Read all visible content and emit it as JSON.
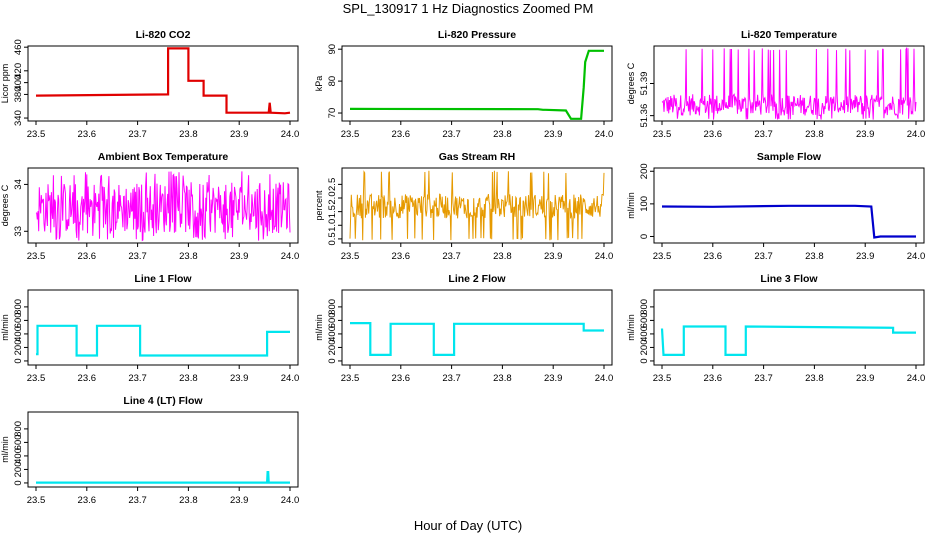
{
  "page": {
    "title": "SPL_130917  1 Hz Diagnostics Zoomed PM",
    "xlabel": "Hour of Day (UTC)"
  },
  "chart_data": [
    {
      "type": "line",
      "title": "Li-820 CO2",
      "ylabel": "Licor ppm",
      "color": "#e00000",
      "xlim": [
        23.5,
        24.0
      ],
      "xticks": [
        23.5,
        23.6,
        23.7,
        23.8,
        23.9,
        24.0
      ],
      "ylim": [
        335,
        462
      ],
      "yticks": [
        340,
        380,
        400,
        420,
        460
      ],
      "series": [
        {
          "style": "step",
          "x": [
            23.5,
            23.76,
            23.76,
            23.8,
            23.8,
            23.83,
            23.83,
            23.875,
            23.875,
            23.958,
            23.96,
            23.962,
            23.99,
            24.0
          ],
          "values": [
            378,
            380,
            458,
            458,
            403,
            403,
            378,
            378,
            349,
            349,
            366,
            349,
            348,
            349
          ]
        }
      ]
    },
    {
      "type": "line",
      "title": "Li-820 Pressure",
      "ylabel": "kPa",
      "color": "#00c000",
      "xlim": [
        23.5,
        24.0
      ],
      "xticks": [
        23.5,
        23.6,
        23.7,
        23.8,
        23.9,
        24.0
      ],
      "ylim": [
        67.5,
        91
      ],
      "yticks": [
        70,
        80,
        90
      ],
      "series": [
        {
          "style": "step",
          "x": [
            23.5,
            23.87,
            23.88,
            23.885,
            23.925,
            23.935,
            23.955,
            23.96,
            23.963,
            23.97,
            24.0
          ],
          "values": [
            71.3,
            71.2,
            71,
            71,
            70.8,
            68.2,
            68.2,
            78,
            86,
            89.5,
            89.5
          ]
        }
      ]
    },
    {
      "type": "line",
      "title": "Li-820 Temperature",
      "ylabel": "degrees C",
      "color": "#ff00ff",
      "xlim": [
        23.5,
        24.0
      ],
      "xticks": [
        23.5,
        23.6,
        23.7,
        23.8,
        23.9,
        24.0
      ],
      "ylim": [
        51.355,
        51.425
      ],
      "yticks": [
        51.36,
        51.39
      ],
      "series": [
        {
          "style": "noise",
          "mean": 51.37,
          "spread": 0.01,
          "spike_high": 51.423,
          "spike_low": 51.356
        }
      ]
    },
    {
      "type": "line",
      "title": "Ambient Box Temperature",
      "ylabel": "degrees C",
      "color": "#ff00ff",
      "xlim": [
        23.5,
        24.0
      ],
      "xticks": [
        23.5,
        23.6,
        23.7,
        23.8,
        23.9,
        24.0
      ],
      "ylim": [
        32.25,
        33.85
      ],
      "yticks": [
        32.5,
        33.5
      ],
      "series": [
        {
          "style": "noise",
          "mean": 33.0,
          "spread": 0.55,
          "spike_high": 33.78,
          "spike_low": 32.3
        }
      ]
    },
    {
      "type": "line",
      "title": "Gas Stream RH",
      "ylabel": "percent",
      "color": "#e69a00",
      "xlim": [
        23.5,
        24.0
      ],
      "xticks": [
        23.5,
        23.6,
        23.7,
        23.8,
        23.9,
        24.0
      ],
      "ylim": [
        0.35,
        3.1
      ],
      "yticks": [
        0.5,
        1.0,
        1.5,
        2.0,
        2.5
      ],
      "series": [
        {
          "style": "noise",
          "mean": 1.7,
          "spread": 0.45,
          "spike_high": 3.0,
          "spike_low": 0.45
        }
      ]
    },
    {
      "type": "line",
      "title": "Sample Flow",
      "ylabel": "ml/min",
      "color": "#0000cc",
      "xlim": [
        23.5,
        24.0
      ],
      "xticks": [
        23.5,
        23.6,
        23.7,
        23.8,
        23.9,
        24.0
      ],
      "ylim": [
        -20,
        210
      ],
      "yticks": [
        0,
        100,
        200
      ],
      "series": [
        {
          "style": "step",
          "x": [
            23.5,
            23.6,
            23.75,
            23.88,
            23.912,
            23.914,
            23.918,
            23.93,
            24.0
          ],
          "values": [
            92,
            91,
            94,
            94,
            92,
            60,
            -3,
            0,
            0
          ]
        }
      ]
    },
    {
      "type": "line",
      "title": "Line 1 Flow",
      "ylabel": "ml/min",
      "color": "#00e5ee",
      "xlim": [
        23.5,
        24.0
      ],
      "xticks": [
        23.5,
        23.6,
        23.7,
        23.8,
        23.9,
        24.0
      ],
      "ylim": [
        -60,
        1050
      ],
      "yticks": [
        0,
        200,
        400,
        600,
        800
      ],
      "series": [
        {
          "style": "step",
          "x": [
            23.5,
            23.503,
            23.503,
            23.58,
            23.58,
            23.62,
            23.62,
            23.705,
            23.705,
            23.955,
            23.955,
            24.0
          ],
          "values": [
            100,
            100,
            520,
            520,
            80,
            80,
            520,
            520,
            80,
            80,
            430,
            430
          ]
        }
      ]
    },
    {
      "type": "line",
      "title": "Line 2 Flow",
      "ylabel": "ml/min",
      "color": "#00e5ee",
      "xlim": [
        23.5,
        24.0
      ],
      "xticks": [
        23.5,
        23.6,
        23.7,
        23.8,
        23.9,
        24.0
      ],
      "ylim": [
        -60,
        1050
      ],
      "yticks": [
        0,
        200,
        400,
        600,
        800
      ],
      "series": [
        {
          "style": "step",
          "x": [
            23.5,
            23.54,
            23.54,
            23.58,
            23.58,
            23.665,
            23.665,
            23.705,
            23.705,
            23.96,
            23.96,
            24.0
          ],
          "values": [
            560,
            560,
            90,
            90,
            550,
            550,
            90,
            90,
            550,
            550,
            450,
            450
          ]
        }
      ]
    },
    {
      "type": "line",
      "title": "Line 3 Flow",
      "ylabel": "ml/min",
      "color": "#00e5ee",
      "xlim": [
        23.5,
        24.0
      ],
      "xticks": [
        23.5,
        23.6,
        23.7,
        23.8,
        23.9,
        24.0
      ],
      "ylim": [
        -60,
        1050
      ],
      "yticks": [
        0,
        200,
        400,
        600,
        800
      ],
      "series": [
        {
          "style": "step",
          "x": [
            23.5,
            23.503,
            23.503,
            23.543,
            23.543,
            23.625,
            23.625,
            23.665,
            23.665,
            23.955,
            23.955,
            24.0
          ],
          "values": [
            480,
            90,
            90,
            90,
            510,
            510,
            90,
            90,
            510,
            490,
            420,
            420
          ]
        }
      ]
    },
    {
      "type": "line",
      "title": "Line 4 (LT) Flow",
      "ylabel": "ml/min",
      "color": "#00e5ee",
      "xlim": [
        23.5,
        24.0
      ],
      "xticks": [
        23.5,
        23.6,
        23.7,
        23.8,
        23.9,
        24.0
      ],
      "ylim": [
        -60,
        1050
      ],
      "yticks": [
        0,
        200,
        400,
        600,
        800
      ],
      "series": [
        {
          "style": "step",
          "x": [
            23.5,
            23.955,
            23.956,
            23.957,
            23.958,
            24.0
          ],
          "values": [
            5,
            5,
            160,
            160,
            5,
            5
          ]
        }
      ]
    }
  ]
}
